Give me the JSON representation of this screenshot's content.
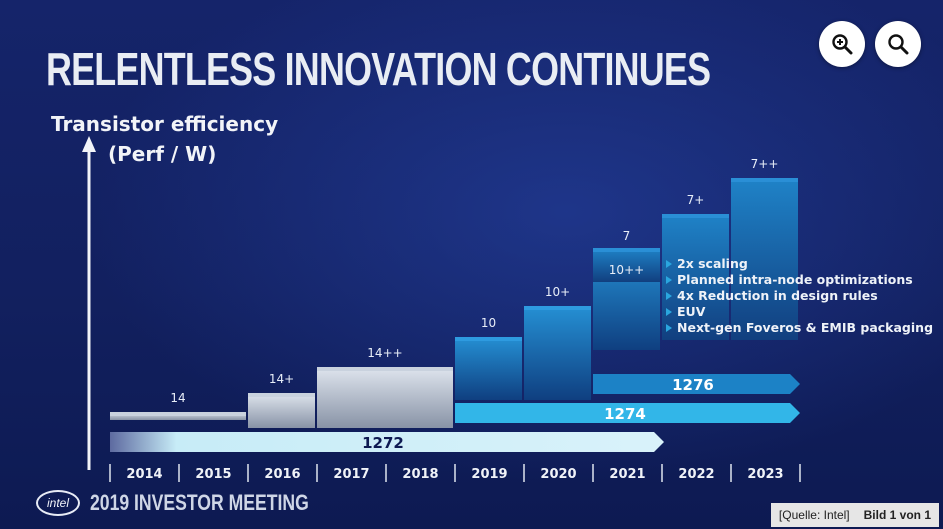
{
  "slide": {
    "title": "RELENTLESS INNOVATION CONTINUES",
    "ylabel_line1": "Transistor efficiency",
    "ylabel_line2": "(Perf / W)",
    "brand": "intel",
    "event": "2019 INVESTOR MEETING"
  },
  "toolbar": {
    "zoom_in_icon": "zoom-in-icon",
    "search_icon": "search-icon"
  },
  "caption": {
    "source": "[Quelle: Intel]",
    "count": "Bild 1 von 1"
  },
  "colors": {
    "background": "#12205f",
    "bar_14nm": "#c9d2de",
    "bar_10nm": "#1d7fc0",
    "bar_7nm": "#1a77bd",
    "arrow_1272": "#c7ecf7",
    "arrow_1274": "#32b6e8",
    "arrow_1276": "#1c82c6",
    "bullet": "#2aa6df"
  },
  "chart_data": {
    "type": "bar",
    "title": "RELENTLESS INNOVATION CONTINUES",
    "ylabel": "Transistor efficiency (Perf / W)",
    "xlabel": "",
    "categories": [
      "2014",
      "2015",
      "2016",
      "2017",
      "2018",
      "2019",
      "2020",
      "2021",
      "2022",
      "2023"
    ],
    "nodes": [
      {
        "label": "14",
        "start": "2014",
        "end": "2015",
        "level": 1,
        "family": "14nm"
      },
      {
        "label": "14+",
        "start": "2016",
        "end": "2016",
        "level": 2,
        "family": "14nm"
      },
      {
        "label": "14++",
        "start": "2017",
        "end": "2018",
        "level": 3,
        "family": "14nm"
      },
      {
        "label": "10",
        "start": "2019",
        "end": "2019",
        "level": 4,
        "family": "10nm"
      },
      {
        "label": "10+",
        "start": "2020",
        "end": "2020",
        "level": 5,
        "family": "10nm"
      },
      {
        "label": "10++",
        "start": "2021",
        "end": "2021",
        "level": 6,
        "family": "10nm"
      },
      {
        "label": "7",
        "start": "2021",
        "end": "2021",
        "level": 7,
        "family": "7nm"
      },
      {
        "label": "7+",
        "start": "2022",
        "end": "2022",
        "level": 8,
        "family": "7nm"
      },
      {
        "label": "7++",
        "start": "2023",
        "end": "2023",
        "level": 9,
        "family": "7nm"
      }
    ],
    "processes": [
      {
        "label": "1272",
        "start": "2014",
        "end": "2021"
      },
      {
        "label": "1274",
        "start": "2019",
        "end": "2023"
      },
      {
        "label": "1276",
        "start": "2021",
        "end": "2023"
      }
    ],
    "annotations": [
      "2x scaling",
      "Planned intra-node optimizations",
      "4x Reduction in design rules",
      "EUV",
      "Next-gen Foveros & EMIB packaging"
    ]
  }
}
